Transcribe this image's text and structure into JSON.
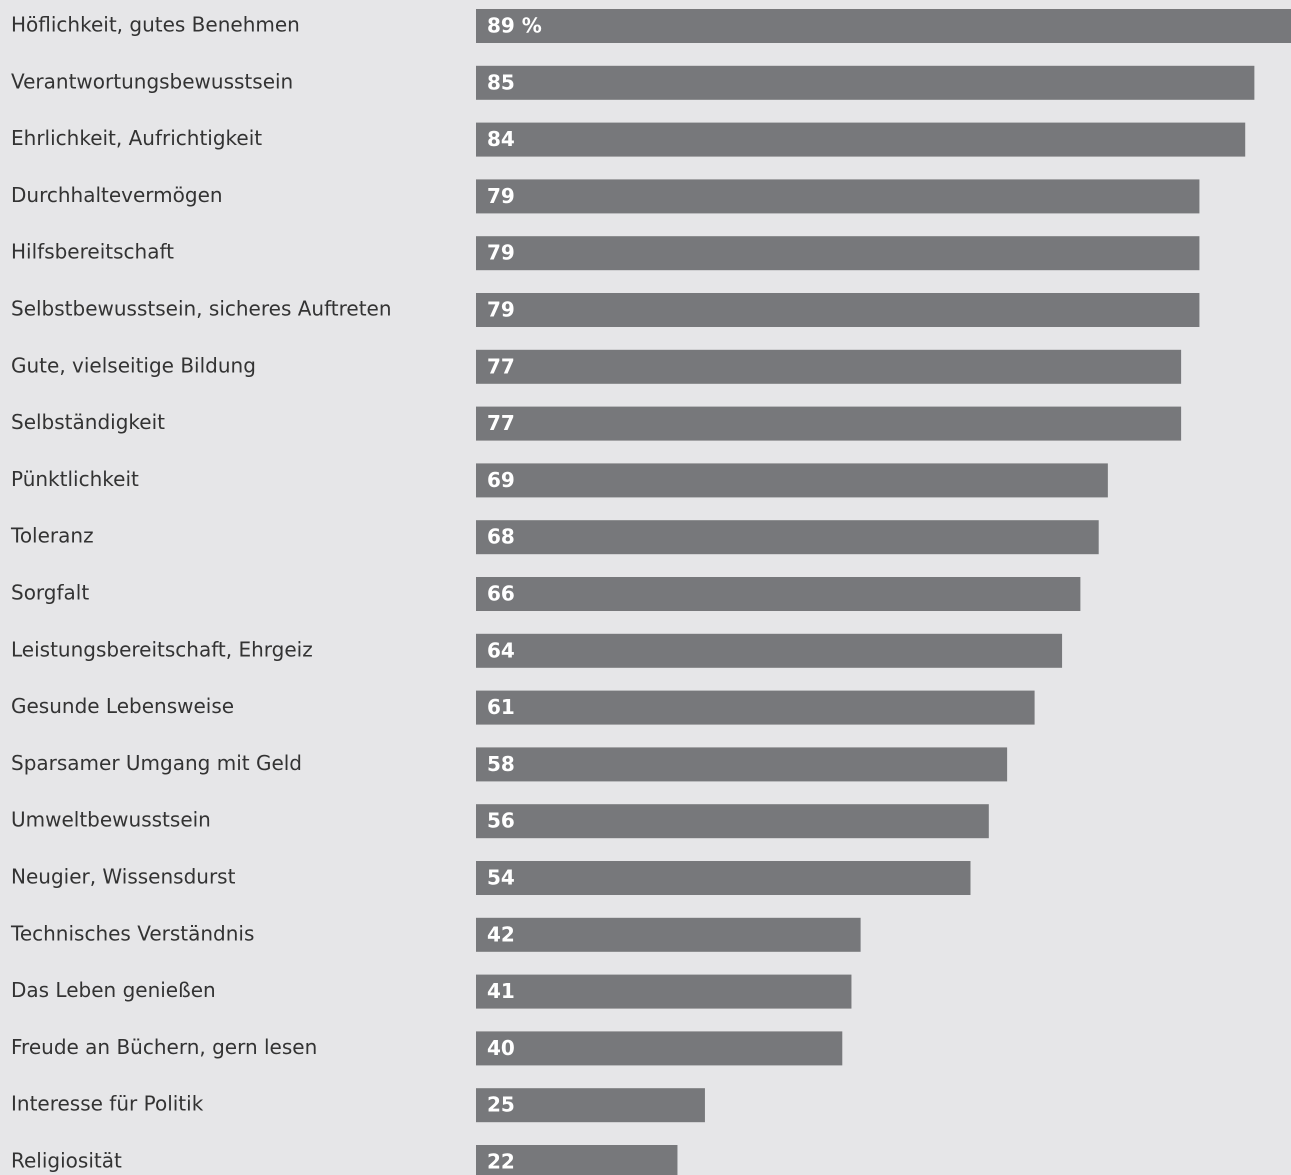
{
  "chart_data": {
    "type": "bar",
    "orientation": "horizontal",
    "categories": [
      "Höflichkeit, gutes Benehmen",
      "Verantwortungsbewusstsein",
      "Ehrlichkeit, Aufrichtigkeit",
      "Durchhaltevermögen",
      "Hilfsbereitschaft",
      "Selbstbewusstsein, sicheres Auftreten",
      "Gute, vielseitige Bildung",
      "Selbständigkeit",
      "Pünktlichkeit",
      "Toleranz",
      "Sorgfalt",
      "Leistungsbereitschaft, Ehrgeiz",
      "Gesunde Lebensweise",
      "Sparsamer Umgang mit Geld",
      "Umweltbewusstsein",
      "Neugier, Wissensdurst",
      "Technisches Verständnis",
      "Das Leben genießen",
      "Freude an Büchern, gern lesen",
      "Interesse für Politik",
      "Religiosität"
    ],
    "values": [
      89,
      85,
      84,
      79,
      79,
      79,
      77,
      77,
      69,
      68,
      66,
      64,
      61,
      58,
      56,
      54,
      42,
      41,
      40,
      25,
      22
    ],
    "value_labels": [
      "89 %",
      "85",
      "84",
      "79",
      "79",
      "79",
      "77",
      "77",
      "69",
      "68",
      "66",
      "64",
      "61",
      "58",
      "56",
      "54",
      "42",
      "41",
      "40",
      "25",
      "22"
    ],
    "unit": "%",
    "xlim": [
      0,
      89
    ],
    "grid": false,
    "legend": "none",
    "colors": {
      "background": "#e6e6e8",
      "bar": "#77787b",
      "value_label": "#ffffff",
      "category_label": "#333333"
    }
  }
}
